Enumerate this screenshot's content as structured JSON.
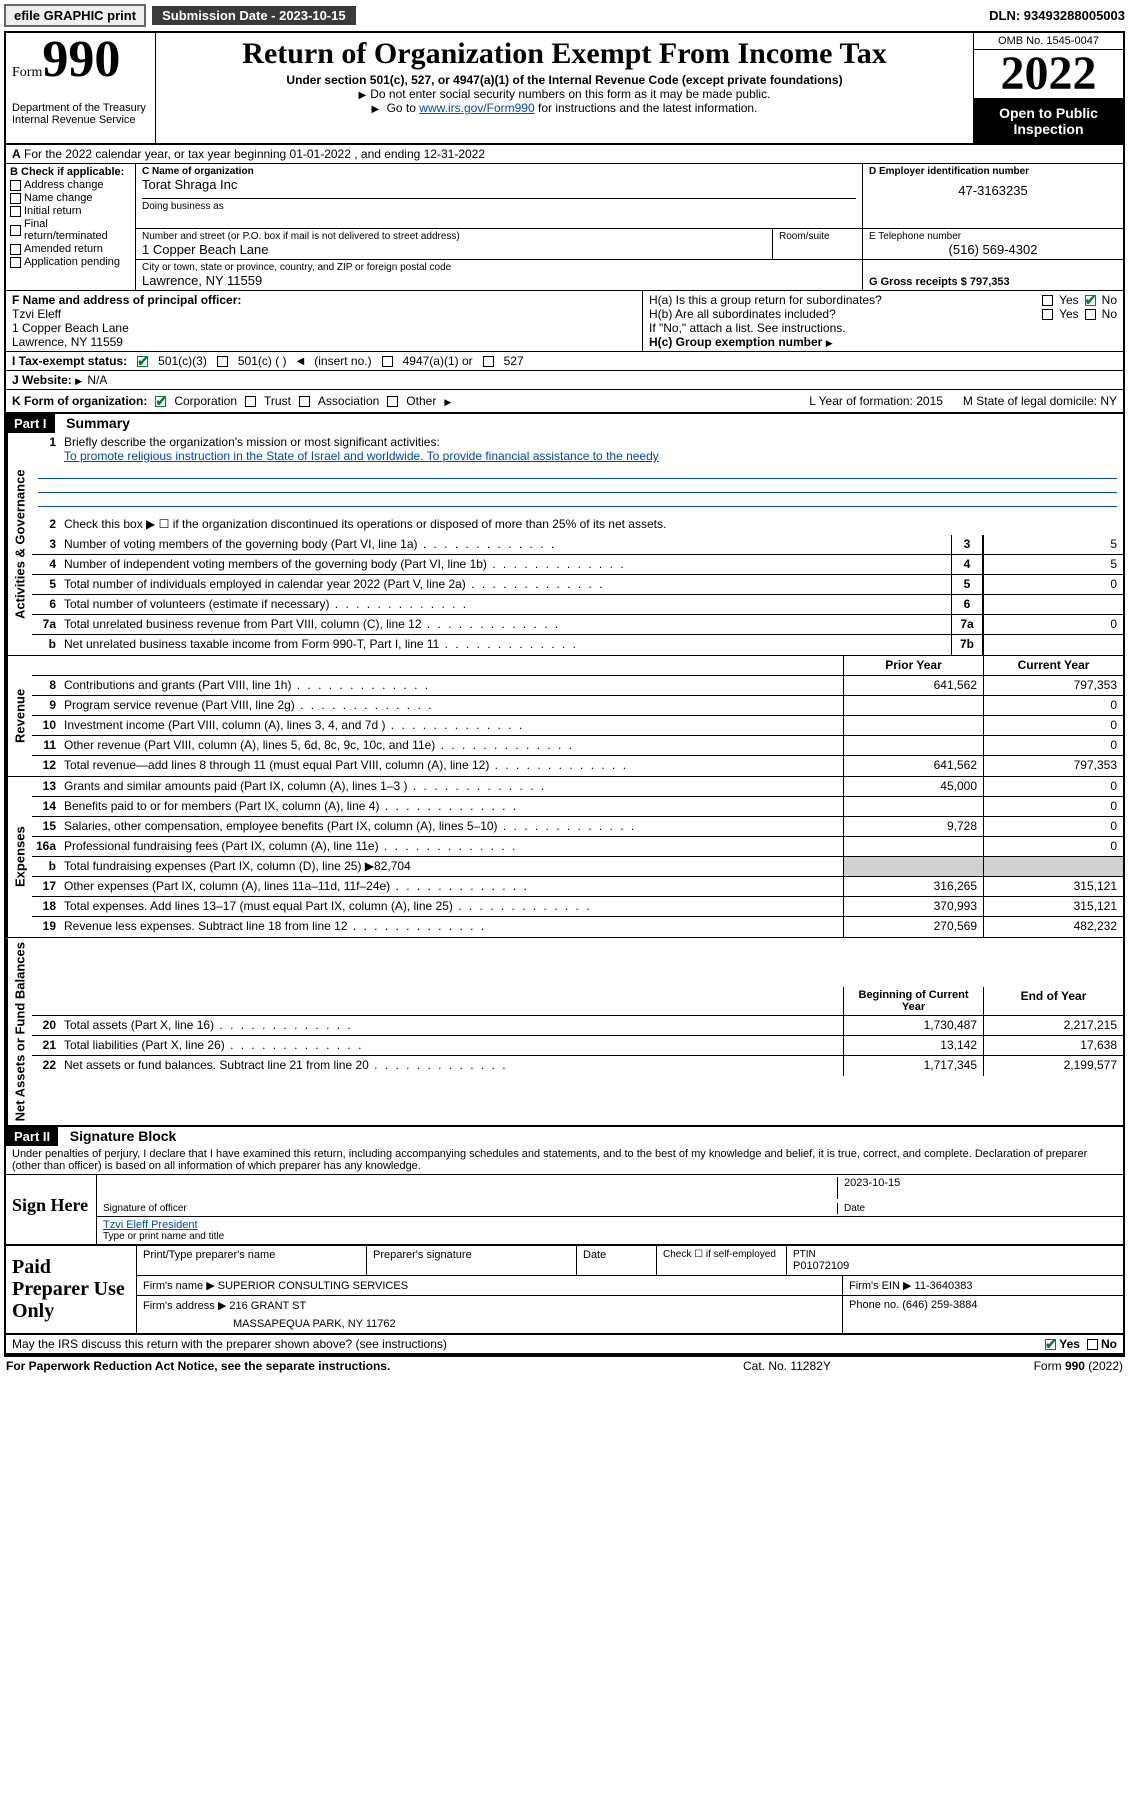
{
  "topbar": {
    "efile": "efile GRAPHIC print",
    "submission_label": "Submission Date - 2023-10-15",
    "dln": "DLN: 93493288005003"
  },
  "header": {
    "form_word": "Form",
    "form_num": "990",
    "dept": "Department of the Treasury",
    "irs": "Internal Revenue Service",
    "title": "Return of Organization Exempt From Income Tax",
    "sub1": "Under section 501(c), 527, or 4947(a)(1) of the Internal Revenue Code (except private foundations)",
    "sub2": "Do not enter social security numbers on this form as it may be made public.",
    "sub3_a": "Go to ",
    "sub3_link": "www.irs.gov/Form990",
    "sub3_b": " for instructions and the latest information.",
    "omb": "OMB No. 1545-0047",
    "year": "2022",
    "opi": "Open to Public Inspection"
  },
  "row_a": {
    "label": "A",
    "text": "For the 2022 calendar year, or tax year beginning 01-01-2022   , and ending 12-31-2022"
  },
  "col_b": {
    "label": "B Check if applicable:",
    "items": [
      "Address change",
      "Name change",
      "Initial return",
      "Final return/terminated",
      "Amended return",
      "Application pending"
    ]
  },
  "block_c": {
    "c_label": "C Name of organization",
    "c_name": "Torat Shraga Inc",
    "dba_label": "Doing business as",
    "addr_label": "Number and street (or P.O. box if mail is not delivered to street address)",
    "addr": "1 Copper Beach Lane",
    "room_label": "Room/suite",
    "city_label": "City or town, state or province, country, and ZIP or foreign postal code",
    "city": "Lawrence, NY  11559"
  },
  "block_d": {
    "d_label": "D Employer identification number",
    "d_val": "47-3163235",
    "e_label": "E Telephone number",
    "e_val": "(516) 569-4302",
    "g_label": "G Gross receipts $ 797,353"
  },
  "block_fh": {
    "f_label": "F Name and address of principal officer:",
    "f_name": "Tzvi Eleff",
    "f_addr1": "1 Copper Beach Lane",
    "f_addr2": "Lawrence, NY  11559",
    "ha_label": "H(a)  Is this a group return for subordinates?",
    "ha_no": "No",
    "hb_label": "H(b)  Are all subordinates included?",
    "hb_note": "If \"No,\" attach a list. See instructions.",
    "hc_label": "H(c)  Group exemption number"
  },
  "row_i": {
    "label": "I   Tax-exempt status:",
    "c3": "501(c)(3)",
    "c": "501(c) (   )",
    "insert": "(insert no.)",
    "a4947": "4947(a)(1) or",
    "s527": "527"
  },
  "row_j": {
    "label": "J   Website:",
    "val": "N/A"
  },
  "row_k": {
    "label": "K Form of organization:",
    "opts": [
      "Corporation",
      "Trust",
      "Association",
      "Other"
    ],
    "l_label": "L Year of formation: 2015",
    "m_label": "M State of legal domicile: NY"
  },
  "part1": {
    "hdr": "Part I",
    "title": "Summary",
    "vlabels": [
      "Activities & Governance",
      "Revenue",
      "Expenses",
      "Net Assets or Fund Balances"
    ],
    "line1_label": "Briefly describe the organization's mission or most significant activities:",
    "line1_text": "To promote religious instruction in the State of Israel and worldwide. To provide financial assistance to the needy",
    "line2": "Check this box ▶ ☐  if the organization discontinued its operations or disposed of more than 25% of its net assets.",
    "lines_gov": [
      {
        "n": "3",
        "d": "Number of voting members of the governing body (Part VI, line 1a)",
        "box": "3",
        "v": "5"
      },
      {
        "n": "4",
        "d": "Number of independent voting members of the governing body (Part VI, line 1b)",
        "box": "4",
        "v": "5"
      },
      {
        "n": "5",
        "d": "Total number of individuals employed in calendar year 2022 (Part V, line 2a)",
        "box": "5",
        "v": "0"
      },
      {
        "n": "6",
        "d": "Total number of volunteers (estimate if necessary)",
        "box": "6",
        "v": ""
      },
      {
        "n": "7a",
        "d": "Total unrelated business revenue from Part VIII, column (C), line 12",
        "box": "7a",
        "v": "0"
      },
      {
        "n": "b",
        "d": "Net unrelated business taxable income from Form 990-T, Part I, line 11",
        "box": "7b",
        "v": ""
      }
    ],
    "yrs_prior": "Prior Year",
    "yrs_curr": "Current Year",
    "lines_rev": [
      {
        "n": "8",
        "d": "Contributions and grants (Part VIII, line 1h)",
        "p": "641,562",
        "c": "797,353"
      },
      {
        "n": "9",
        "d": "Program service revenue (Part VIII, line 2g)",
        "p": "",
        "c": "0"
      },
      {
        "n": "10",
        "d": "Investment income (Part VIII, column (A), lines 3, 4, and 7d )",
        "p": "",
        "c": "0"
      },
      {
        "n": "11",
        "d": "Other revenue (Part VIII, column (A), lines 5, 6d, 8c, 9c, 10c, and 11e)",
        "p": "",
        "c": "0"
      },
      {
        "n": "12",
        "d": "Total revenue—add lines 8 through 11 (must equal Part VIII, column (A), line 12)",
        "p": "641,562",
        "c": "797,353"
      }
    ],
    "lines_exp": [
      {
        "n": "13",
        "d": "Grants and similar amounts paid (Part IX, column (A), lines 1–3 )",
        "p": "45,000",
        "c": "0"
      },
      {
        "n": "14",
        "d": "Benefits paid to or for members (Part IX, column (A), line 4)",
        "p": "",
        "c": "0"
      },
      {
        "n": "15",
        "d": "Salaries, other compensation, employee benefits (Part IX, column (A), lines 5–10)",
        "p": "9,728",
        "c": "0"
      },
      {
        "n": "16a",
        "d": "Professional fundraising fees (Part IX, column (A), line 11e)",
        "p": "",
        "c": "0"
      },
      {
        "n": "b",
        "d": "Total fundraising expenses (Part IX, column (D), line 25) ▶82,704",
        "p": "grey",
        "c": "grey"
      },
      {
        "n": "17",
        "d": "Other expenses (Part IX, column (A), lines 11a–11d, 11f–24e)",
        "p": "316,265",
        "c": "315,121"
      },
      {
        "n": "18",
        "d": "Total expenses. Add lines 13–17 (must equal Part IX, column (A), line 25)",
        "p": "370,993",
        "c": "315,121"
      },
      {
        "n": "19",
        "d": "Revenue less expenses. Subtract line 18 from line 12",
        "p": "270,569",
        "c": "482,232"
      }
    ],
    "bal_hdr_prior": "Beginning of Current Year",
    "bal_hdr_curr": "End of Year",
    "lines_bal": [
      {
        "n": "20",
        "d": "Total assets (Part X, line 16)",
        "p": "1,730,487",
        "c": "2,217,215"
      },
      {
        "n": "21",
        "d": "Total liabilities (Part X, line 26)",
        "p": "13,142",
        "c": "17,638"
      },
      {
        "n": "22",
        "d": "Net assets or fund balances. Subtract line 21 from line 20",
        "p": "1,717,345",
        "c": "2,199,577"
      }
    ]
  },
  "part2": {
    "hdr": "Part II",
    "title": "Signature Block",
    "penalty": "Under penalties of perjury, I declare that I have examined this return, including accompanying schedules and statements, and to the best of my knowledge and belief, it is true, correct, and complete. Declaration of preparer (other than officer) is based on all information of which preparer has any knowledge.",
    "sign_here": "Sign Here",
    "sig_officer": "Signature of officer",
    "sig_date_val": "2023-10-15",
    "sig_date": "Date",
    "sig_name": "Tzvi Eleff  President",
    "sig_name_lbl": "Type or print name and title",
    "paid": "Paid Preparer Use Only",
    "p_name_lbl": "Print/Type preparer's name",
    "p_sig_lbl": "Preparer's signature",
    "p_date_lbl": "Date",
    "p_check": "Check ☐ if self-employed",
    "ptin_lbl": "PTIN",
    "ptin": "P01072109",
    "firm_name_lbl": "Firm's name ▶",
    "firm_name": "SUPERIOR CONSULTING SERVICES",
    "firm_ein_lbl": "Firm's EIN ▶ 11-3640383",
    "firm_addr_lbl": "Firm's address ▶",
    "firm_addr": "216 GRANT ST",
    "firm_city": "MASSAPEQUA PARK, NY  11762",
    "phone_lbl": "Phone no. (646) 259-3884",
    "may_irs": "May the IRS discuss this return with the preparer shown above? (see instructions)",
    "yes": "Yes",
    "no": "No"
  },
  "footer": {
    "pra": "For Paperwork Reduction Act Notice, see the separate instructions.",
    "cat": "Cat. No. 11282Y",
    "form": "Form 990 (2022)"
  },
  "colors": {
    "link": "#0047ab",
    "green": "#0a7a3a",
    "grey": "#d0d0d0"
  }
}
